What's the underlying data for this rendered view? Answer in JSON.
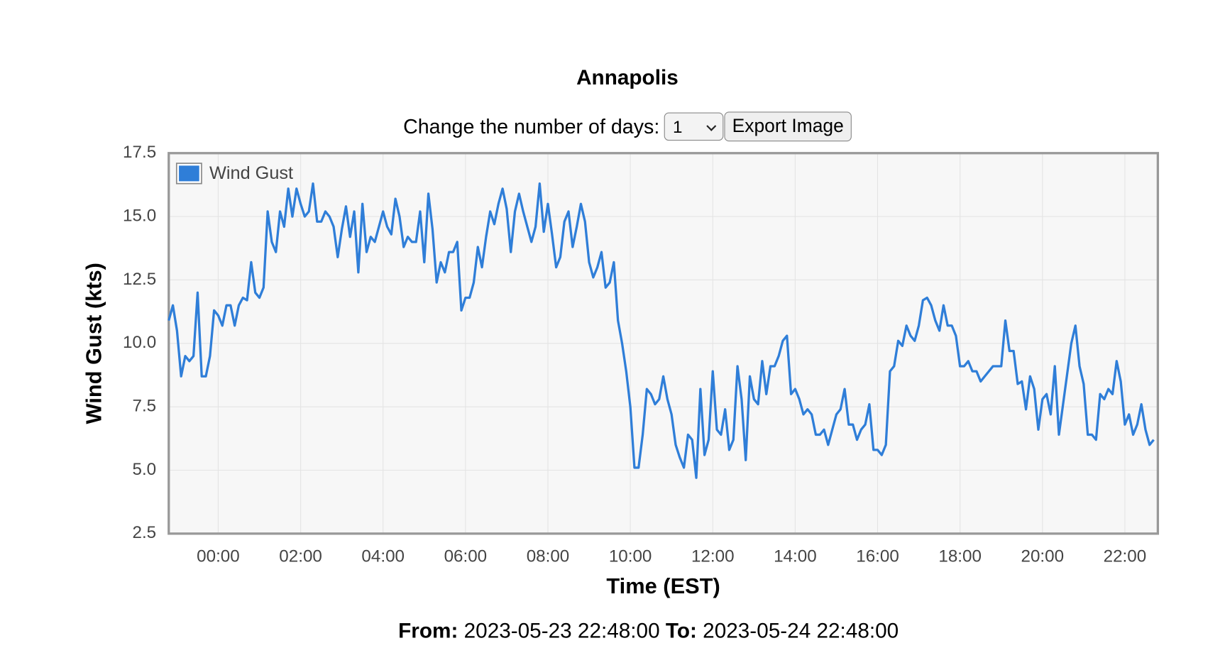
{
  "controls": {
    "days_label": "Change the number of days:",
    "days_value": "1",
    "export_button": "Export Image"
  },
  "footer": {
    "from_label": "From:",
    "from_value": "2023-05-23 22:48:00",
    "to_label": "To:",
    "to_value": "2023-05-24 22:48:00"
  },
  "chart_data": {
    "type": "line",
    "title": "Annapolis",
    "x_label": "Time (EST)",
    "y_label": "Wind Gust (kts)",
    "legend": "top-left",
    "grid": true,
    "xlim": [
      -72,
      1368
    ],
    "xticks": [
      {
        "value": 0,
        "label": "00:00"
      },
      {
        "value": 120,
        "label": "02:00"
      },
      {
        "value": 240,
        "label": "04:00"
      },
      {
        "value": 360,
        "label": "06:00"
      },
      {
        "value": 480,
        "label": "08:00"
      },
      {
        "value": 600,
        "label": "10:00"
      },
      {
        "value": 720,
        "label": "12:00"
      },
      {
        "value": 840,
        "label": "14:00"
      },
      {
        "value": 960,
        "label": "16:00"
      },
      {
        "value": 1080,
        "label": "18:00"
      },
      {
        "value": 1200,
        "label": "20:00"
      },
      {
        "value": 1320,
        "label": "22:00"
      }
    ],
    "ylim": [
      2.5,
      17.5
    ],
    "yticks": [
      2.5,
      {
        "value": 5,
        "label": "5.0"
      },
      7.5,
      {
        "value": 10,
        "label": "10.0"
      },
      12.5,
      {
        "value": 15,
        "label": "15.0"
      },
      17.5
    ],
    "x": [
      -72,
      -66,
      -60,
      -54,
      -48,
      -42,
      -36,
      -30,
      -24,
      -18,
      -12,
      -6,
      0,
      6,
      12,
      18,
      24,
      30,
      36,
      42,
      48,
      54,
      60,
      66,
      72,
      78,
      84,
      90,
      96,
      102,
      108,
      114,
      120,
      126,
      132,
      138,
      144,
      150,
      156,
      162,
      168,
      174,
      180,
      186,
      192,
      198,
      204,
      210,
      216,
      222,
      228,
      234,
      240,
      246,
      252,
      258,
      264,
      270,
      276,
      282,
      288,
      294,
      300,
      306,
      312,
      318,
      324,
      330,
      336,
      342,
      348,
      354,
      360,
      366,
      372,
      378,
      384,
      390,
      396,
      402,
      408,
      414,
      420,
      426,
      432,
      438,
      444,
      450,
      456,
      462,
      468,
      474,
      480,
      486,
      492,
      498,
      504,
      510,
      516,
      522,
      528,
      534,
      540,
      546,
      552,
      558,
      564,
      570,
      576,
      582,
      588,
      594,
      600,
      606,
      612,
      618,
      624,
      630,
      636,
      642,
      648,
      654,
      660,
      666,
      672,
      678,
      684,
      690,
      696,
      702,
      708,
      714,
      720,
      726,
      732,
      738,
      744,
      750,
      756,
      762,
      768,
      774,
      780,
      786,
      792,
      798,
      804,
      810,
      816,
      822,
      828,
      834,
      840,
      846,
      852,
      858,
      864,
      870,
      876,
      882,
      888,
      894,
      900,
      906,
      912,
      918,
      924,
      930,
      936,
      942,
      948,
      954,
      960,
      966,
      972,
      978,
      984,
      990,
      996,
      1002,
      1008,
      1014,
      1020,
      1026,
      1032,
      1038,
      1044,
      1050,
      1056,
      1062,
      1068,
      1074,
      1080,
      1086,
      1092,
      1098,
      1104,
      1110,
      1116,
      1122,
      1128,
      1134,
      1140,
      1146,
      1152,
      1158,
      1164,
      1170,
      1176,
      1182,
      1188,
      1194,
      1200,
      1206,
      1212,
      1218,
      1224,
      1230,
      1236,
      1242,
      1248,
      1254,
      1260,
      1266,
      1272,
      1278,
      1284,
      1290,
      1296,
      1302,
      1308,
      1314,
      1320,
      1326,
      1332,
      1338,
      1344,
      1350,
      1356,
      1362
    ],
    "series": [
      {
        "name": "Wind Gust",
        "color": "#2f7ed8",
        "values": [
          10.9,
          11.5,
          10.5,
          8.7,
          9.5,
          9.3,
          9.5,
          12.0,
          8.7,
          8.7,
          9.5,
          11.3,
          11.1,
          10.7,
          11.5,
          11.5,
          10.7,
          11.5,
          11.8,
          11.7,
          13.2,
          12.0,
          11.8,
          12.2,
          15.2,
          14.0,
          13.6,
          15.2,
          14.6,
          16.1,
          15.0,
          16.1,
          15.5,
          15.0,
          15.2,
          16.3,
          14.8,
          14.8,
          15.2,
          15.0,
          14.6,
          13.4,
          14.5,
          15.4,
          14.2,
          15.2,
          12.8,
          15.5,
          13.6,
          14.2,
          14.0,
          14.6,
          15.2,
          14.6,
          14.3,
          15.7,
          15.0,
          13.8,
          14.2,
          14.0,
          14.0,
          15.2,
          13.2,
          15.9,
          14.5,
          12.4,
          13.2,
          12.8,
          13.6,
          13.6,
          14.0,
          11.3,
          11.8,
          11.8,
          12.4,
          13.8,
          13.0,
          14.2,
          15.2,
          14.7,
          15.5,
          16.1,
          15.3,
          13.6,
          15.2,
          15.9,
          15.2,
          14.6,
          14.0,
          14.6,
          16.3,
          14.4,
          15.5,
          14.3,
          13.0,
          13.4,
          14.8,
          15.2,
          13.8,
          14.6,
          15.5,
          14.8,
          13.2,
          12.6,
          13.0,
          13.6,
          12.2,
          12.4,
          13.2,
          10.9,
          10.0,
          8.9,
          7.5,
          5.1,
          5.1,
          6.4,
          8.2,
          8.0,
          7.6,
          7.8,
          8.7,
          7.8,
          7.2,
          6.0,
          5.5,
          5.1,
          6.4,
          6.2,
          4.7,
          8.2,
          5.6,
          6.2,
          8.9,
          6.6,
          6.4,
          7.4,
          5.8,
          6.2,
          9.1,
          7.8,
          5.4,
          8.7,
          7.8,
          7.6,
          9.3,
          8.0,
          9.1,
          9.1,
          9.5,
          10.1,
          10.3,
          8.0,
          8.2,
          7.8,
          7.2,
          7.4,
          7.2,
          6.4,
          6.4,
          6.6,
          6.0,
          6.6,
          7.2,
          7.4,
          8.2,
          6.8,
          6.8,
          6.2,
          6.6,
          6.8,
          7.6,
          5.8,
          5.8,
          5.6,
          6.0,
          8.9,
          9.1,
          10.1,
          9.9,
          10.7,
          10.3,
          10.1,
          10.7,
          11.7,
          11.8,
          11.5,
          10.9,
          10.5,
          11.5,
          10.7,
          10.7,
          10.3,
          9.1,
          9.1,
          9.3,
          8.9,
          8.9,
          8.5,
          8.7,
          8.9,
          9.1,
          9.1,
          9.1,
          10.9,
          9.7,
          9.7,
          8.4,
          8.5,
          7.4,
          8.7,
          8.2,
          6.6,
          7.8,
          8.0,
          7.2,
          9.1,
          6.4,
          7.6,
          8.8,
          10.0,
          10.7,
          9.1,
          8.4,
          6.4,
          6.4,
          6.2,
          8.0,
          7.8,
          8.2,
          8.0,
          9.3,
          8.5,
          6.8,
          7.2,
          6.4,
          6.8,
          7.6,
          6.6,
          6.0,
          6.2
        ]
      }
    ]
  }
}
